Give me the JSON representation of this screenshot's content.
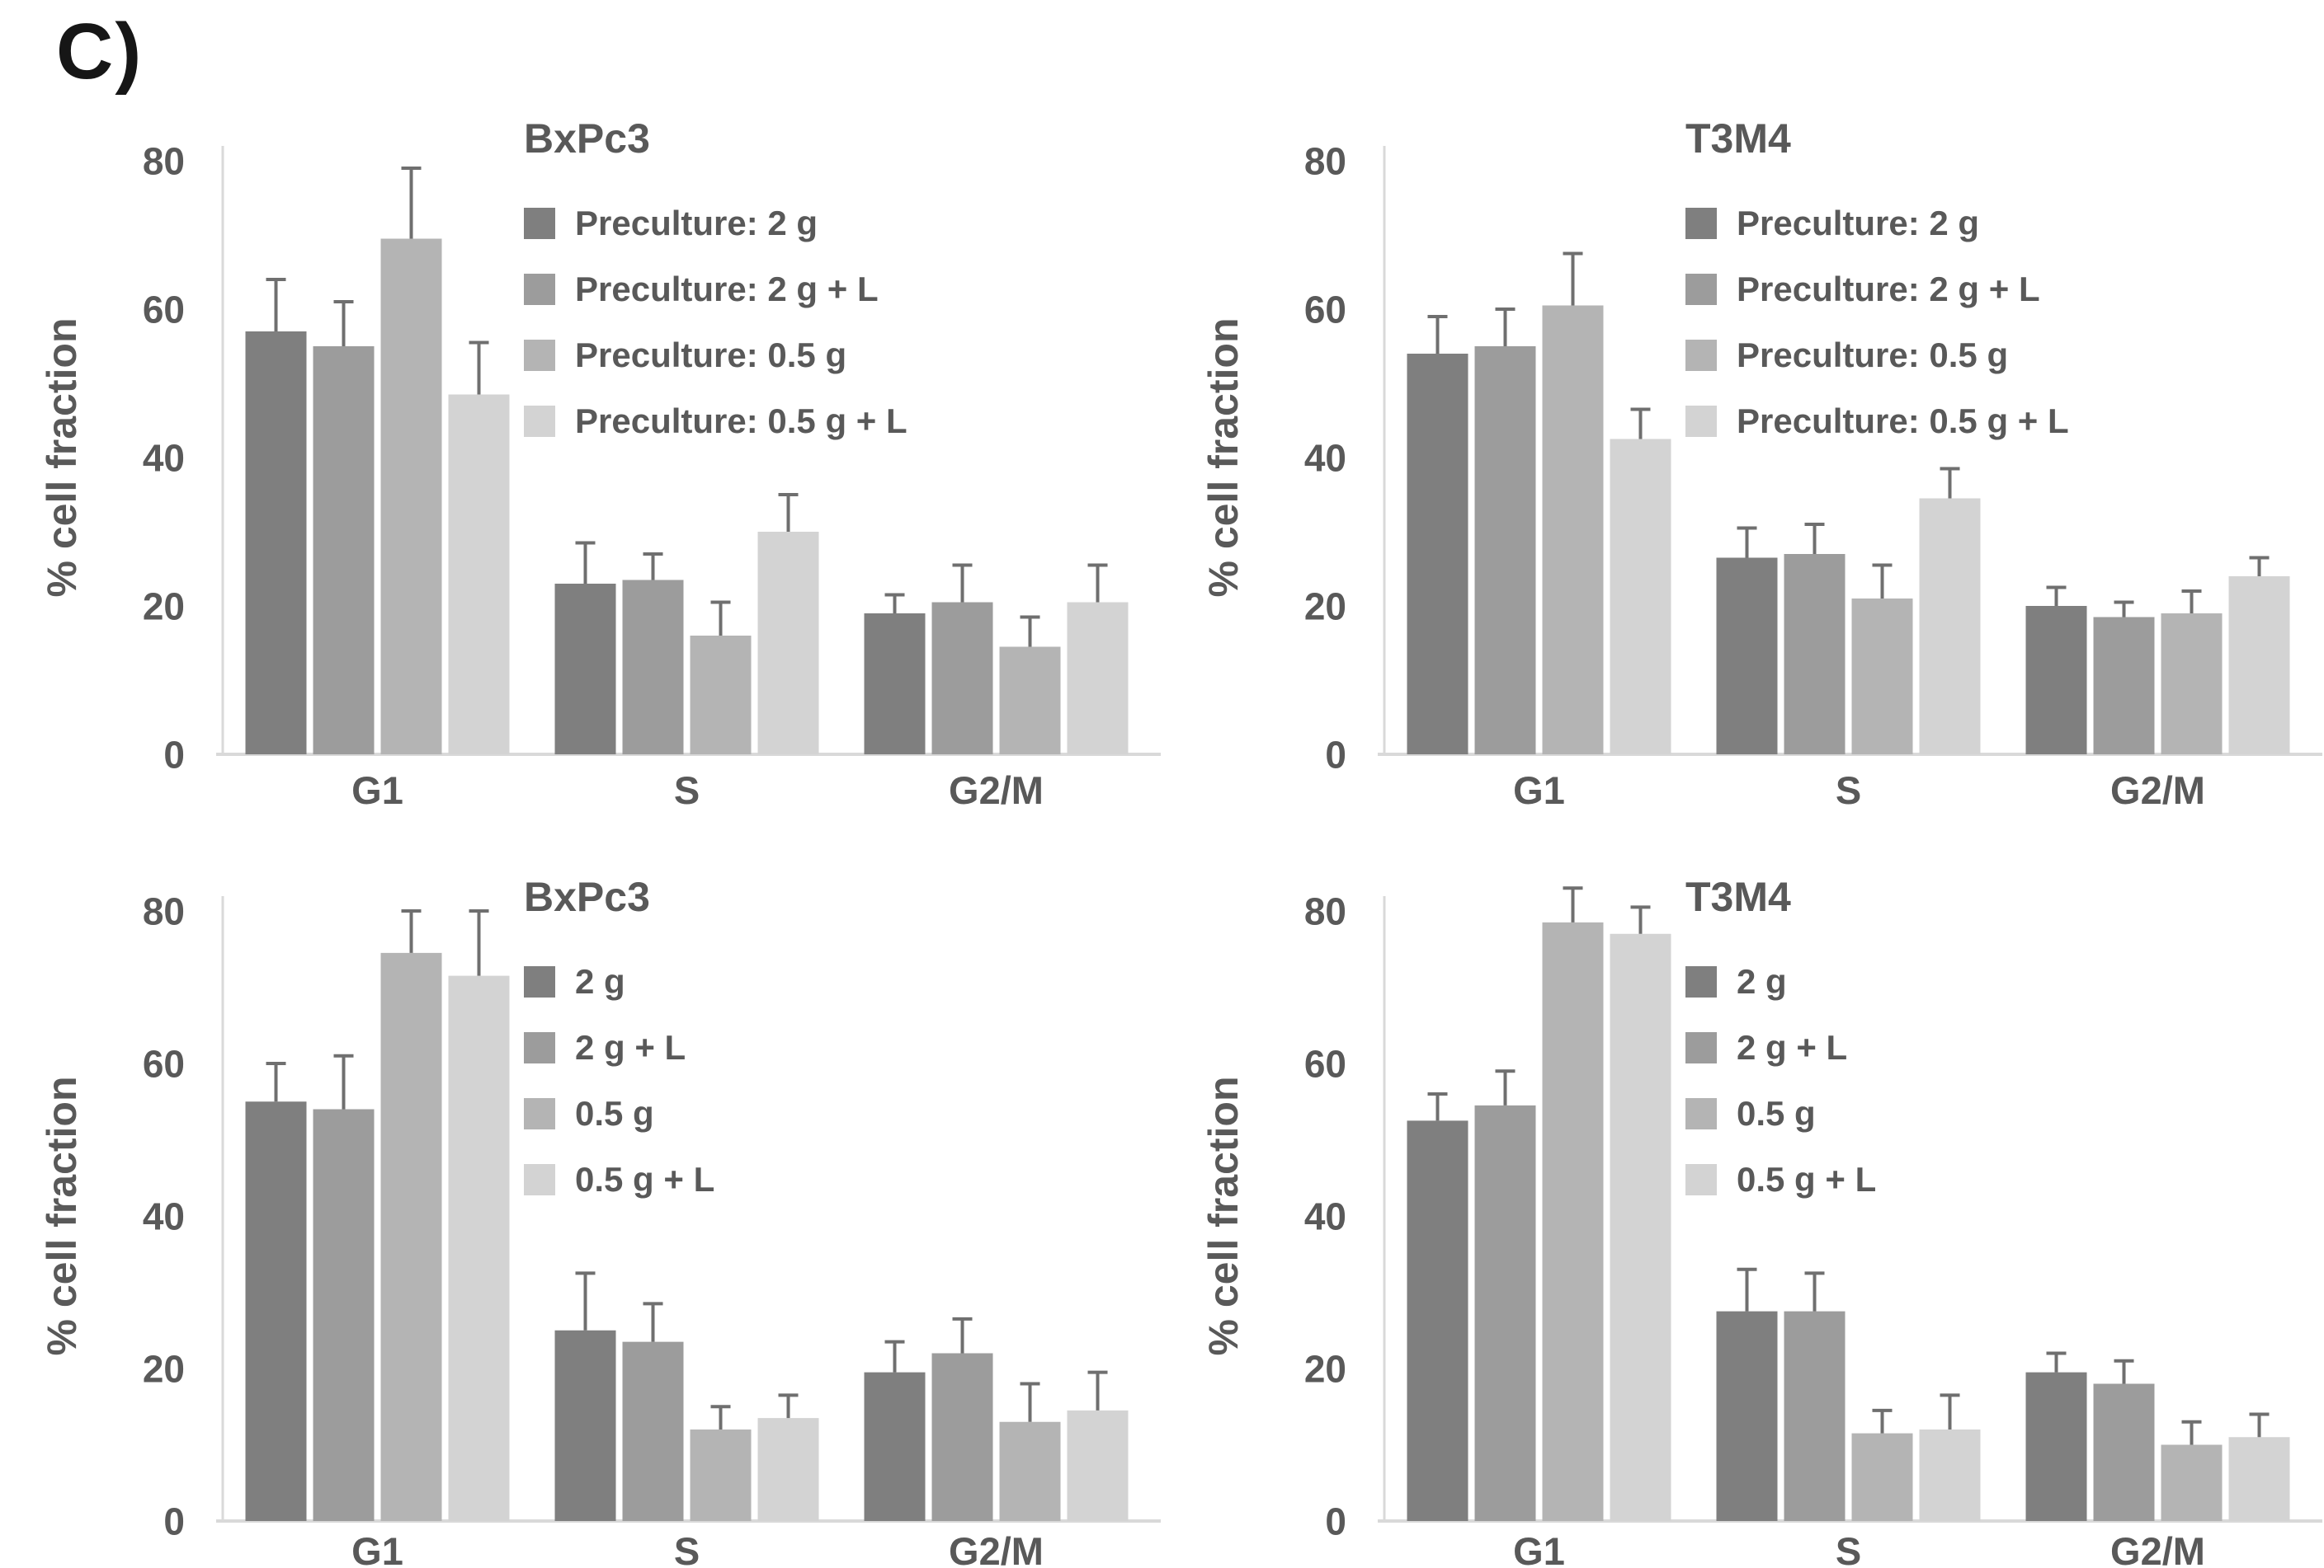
{
  "figure_label": "C)",
  "colors": {
    "text": "#595959",
    "axis_line": "#d9d9d9",
    "error_bar": "#6f6f6f",
    "figure_label": "#161616",
    "series_grays": [
      "#7f7f7f",
      "#9c9c9c",
      "#b4b4b4",
      "#d3d3d3"
    ]
  },
  "chart_data": [
    {
      "type": "bar",
      "title": "BxPc3",
      "ylabel": "% cell fraction",
      "ylim": [
        0,
        80
      ],
      "yticks": [
        0,
        20,
        40,
        60,
        80
      ],
      "grid": false,
      "legend_position": "inside-top-right",
      "categories": [
        "G1",
        "S",
        "G2/M"
      ],
      "series": [
        {
          "name": "Preculture: 2 g",
          "color": "#7f7f7f",
          "values": [
            57,
            23,
            19
          ],
          "errors": [
            7,
            5.5,
            2.5
          ]
        },
        {
          "name": "Preculture: 2 g + L",
          "color": "#9c9c9c",
          "values": [
            55,
            23.5,
            20.5
          ],
          "errors": [
            6,
            3.5,
            5
          ]
        },
        {
          "name": "Preculture: 0.5 g",
          "color": "#b4b4b4",
          "values": [
            69.5,
            16,
            14.5
          ],
          "errors": [
            9.5,
            4.5,
            4
          ]
        },
        {
          "name": "Preculture: 0.5 g + L",
          "color": "#d3d3d3",
          "values": [
            48.5,
            30,
            20.5
          ],
          "errors": [
            7,
            5,
            5
          ]
        }
      ]
    },
    {
      "type": "bar",
      "title": "T3M4",
      "ylabel": "% cell fraction",
      "ylim": [
        0,
        80
      ],
      "yticks": [
        0,
        20,
        40,
        60,
        80
      ],
      "grid": false,
      "legend_position": "inside-top-right",
      "categories": [
        "G1",
        "S",
        "G2/M"
      ],
      "series": [
        {
          "name": "Preculture: 2 g",
          "color": "#7f7f7f",
          "values": [
            54,
            26.5,
            20
          ],
          "errors": [
            5,
            4,
            2.5
          ]
        },
        {
          "name": "Preculture: 2 g + L",
          "color": "#9c9c9c",
          "values": [
            55,
            27,
            18.5
          ],
          "errors": [
            5,
            4,
            2
          ]
        },
        {
          "name": "Preculture: 0.5 g",
          "color": "#b4b4b4",
          "values": [
            60.5,
            21,
            19
          ],
          "errors": [
            7,
            4.5,
            3
          ]
        },
        {
          "name": "Preculture: 0.5 g + L",
          "color": "#d3d3d3",
          "values": [
            42.5,
            34.5,
            24
          ],
          "errors": [
            4,
            4,
            2.5
          ]
        }
      ]
    },
    {
      "type": "bar",
      "title": "BxPc3",
      "ylabel": "% cell fraction",
      "ylim": [
        0,
        80
      ],
      "yticks": [
        0,
        20,
        40,
        60,
        80
      ],
      "grid": false,
      "legend_position": "inside-top-right",
      "categories": [
        "G1",
        "S",
        "G2/M"
      ],
      "series": [
        {
          "name": "2 g",
          "color": "#7f7f7f",
          "values": [
            55,
            25,
            19.5
          ],
          "errors": [
            5,
            7.5,
            4
          ]
        },
        {
          "name": "2 g + L",
          "color": "#9c9c9c",
          "values": [
            54,
            23.5,
            22
          ],
          "errors": [
            7,
            5,
            4.5
          ]
        },
        {
          "name": "0.5 g",
          "color": "#b4b4b4",
          "values": [
            74.5,
            12,
            13
          ],
          "errors": [
            5.5,
            3,
            5
          ]
        },
        {
          "name": "0.5 g + L",
          "color": "#d3d3d3",
          "values": [
            71.5,
            13.5,
            14.5
          ],
          "errors": [
            8.5,
            3,
            5
          ]
        }
      ]
    },
    {
      "type": "bar",
      "title": "T3M4",
      "ylabel": "% cell fraction",
      "ylim": [
        0,
        80
      ],
      "yticks": [
        0,
        20,
        40,
        60,
        80
      ],
      "grid": false,
      "legend_position": "inside-top-right",
      "categories": [
        "G1",
        "S",
        "G2/M"
      ],
      "series": [
        {
          "name": "2 g",
          "color": "#7f7f7f",
          "values": [
            52.5,
            27.5,
            19.5
          ],
          "errors": [
            3.5,
            5.5,
            2.5
          ]
        },
        {
          "name": "2 g + L",
          "color": "#9c9c9c",
          "values": [
            54.5,
            27.5,
            18
          ],
          "errors": [
            4.5,
            5,
            3
          ]
        },
        {
          "name": "0.5 g",
          "color": "#b4b4b4",
          "values": [
            78.5,
            11.5,
            10
          ],
          "errors": [
            4.5,
            3,
            3
          ]
        },
        {
          "name": "0.5 g + L",
          "color": "#d3d3d3",
          "values": [
            77,
            12,
            11
          ],
          "errors": [
            3.5,
            4.5,
            3
          ]
        }
      ]
    }
  ]
}
